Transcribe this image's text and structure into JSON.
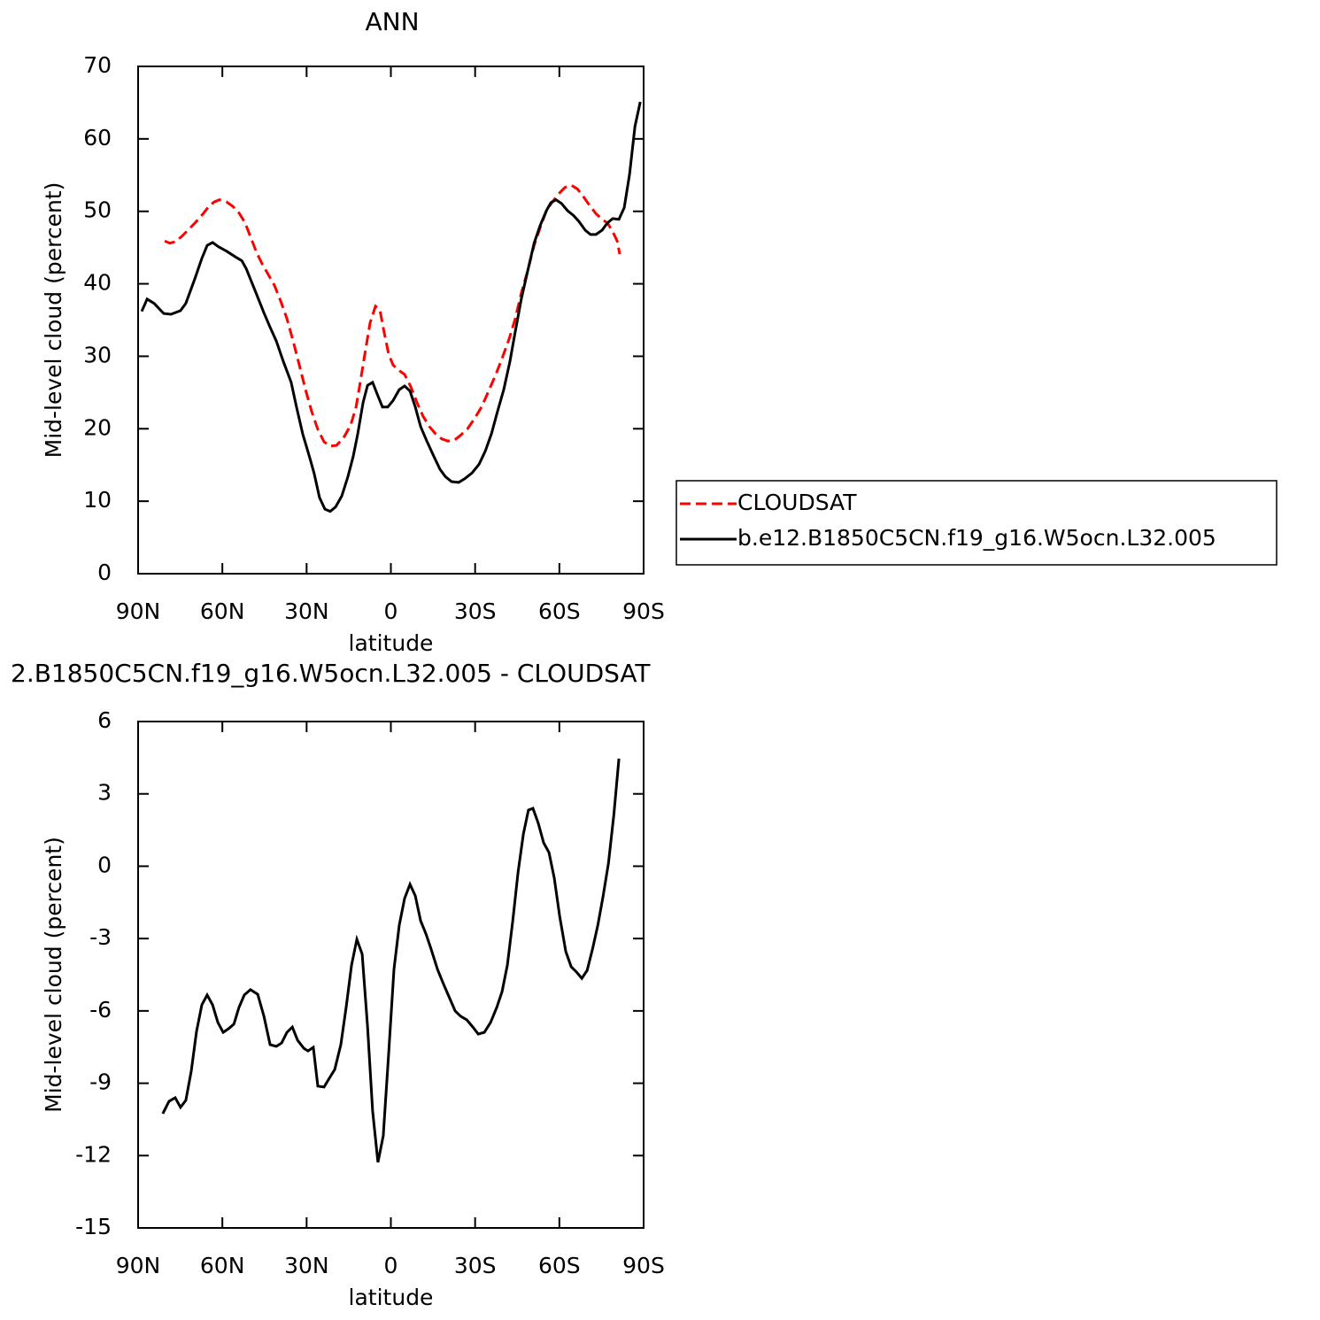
{
  "chart_data": [
    {
      "type": "line",
      "title": "ANN",
      "xlabel": "latitude",
      "ylabel": "Mid-level cloud (percent)",
      "xlim": [
        90,
        -90
      ],
      "xticks": [
        {
          "value": 90,
          "label": "90N"
        },
        {
          "value": 60,
          "label": "60N"
        },
        {
          "value": 30,
          "label": "30N"
        },
        0,
        {
          "value": -30,
          "label": "30S"
        },
        {
          "value": -60,
          "label": "60S"
        },
        {
          "value": -90,
          "label": "90S"
        }
      ],
      "ylim": [
        0,
        70
      ],
      "yticks": [
        0,
        10,
        20,
        30,
        40,
        50,
        60,
        70
      ],
      "legend": "right",
      "series": [
        {
          "name": "CLOUDSAT",
          "color": "#ff0000",
          "line_style": "dashed",
          "x": [
            80.5,
            78.7,
            76.8,
            74.6,
            72.0,
            69.5,
            67.0,
            64.8,
            62.9,
            61.0,
            58.5,
            56.3,
            54.1,
            51.9,
            50.0,
            47.8,
            45.9,
            43.7,
            41.5,
            39.2,
            37.0,
            34.8,
            32.6,
            30.4,
            28.2,
            26.0,
            23.8,
            21.6,
            19.4,
            16.9,
            14.3,
            12.4,
            10.9,
            9.0,
            7.4,
            5.5,
            3.9,
            2.4,
            0.8,
            -0.8,
            -2.7,
            -4.9,
            -7.1,
            -9.3,
            -11.5,
            -13.7,
            -15.9,
            -18.1,
            -20.3,
            -22.5,
            -24.8,
            -27.3,
            -29.8,
            -32.3,
            -34.8,
            -37.4,
            -39.6,
            -42.1,
            -44.3,
            -46.5,
            -48.8,
            -51.0,
            -53.2,
            -55.4,
            -57.5,
            -59.7,
            -62.0,
            -64.2,
            -66.4,
            -68.6,
            -70.8,
            -73.0,
            -75.2,
            -77.1,
            -79.0,
            -80.6,
            -81.5
          ],
          "values": [
            45.9,
            45.6,
            45.8,
            46.5,
            47.5,
            48.5,
            49.6,
            50.7,
            51.3,
            51.6,
            51.3,
            50.7,
            49.8,
            48.4,
            46.5,
            44.3,
            42.8,
            41.3,
            39.8,
            37.6,
            35.2,
            32.1,
            28.8,
            25.4,
            22.4,
            19.9,
            18.2,
            17.6,
            17.7,
            18.7,
            20.5,
            23.0,
            26.4,
            30.9,
            34.6,
            36.9,
            36.4,
            33.3,
            30.3,
            28.8,
            28.1,
            27.5,
            25.8,
            23.6,
            21.7,
            20.3,
            19.3,
            18.6,
            18.3,
            18.4,
            19.1,
            20.0,
            21.4,
            23.0,
            25.2,
            27.5,
            29.7,
            32.4,
            35.2,
            38.8,
            41.9,
            45.3,
            47.8,
            50.1,
            51.3,
            52.4,
            53.3,
            53.6,
            53.1,
            52.0,
            50.8,
            49.7,
            48.9,
            48.4,
            47.2,
            45.9,
            44.1
          ]
        },
        {
          "name": "b.e12.B1850C5CN.f19_g16.W5ocn.L32.005",
          "color": "#000000",
          "line_style": "solid",
          "x": [
            88.7,
            86.8,
            84.3,
            80.9,
            78.3,
            74.9,
            73.0,
            69.8,
            67.3,
            65.4,
            63.5,
            61.3,
            58.5,
            55.3,
            53.1,
            51.5,
            48.4,
            45.2,
            43.0,
            40.8,
            38.3,
            35.5,
            33.6,
            31.4,
            28.8,
            27.3,
            25.4,
            23.5,
            21.6,
            19.7,
            17.5,
            15.3,
            13.4,
            11.8,
            9.9,
            8.3,
            6.5,
            4.9,
            3.0,
            1.1,
            -0.8,
            -3.0,
            -4.9,
            -6.8,
            -8.7,
            -10.6,
            -12.8,
            -15.3,
            -17.5,
            -19.4,
            -21.6,
            -24.1,
            -26.3,
            -28.9,
            -31.4,
            -33.6,
            -35.8,
            -38.0,
            -40.2,
            -42.4,
            -44.3,
            -46.5,
            -48.8,
            -51.0,
            -53.2,
            -55.4,
            -57.0,
            -58.8,
            -60.7,
            -62.9,
            -65.1,
            -67.0,
            -69.2,
            -71.1,
            -73.0,
            -75.2,
            -77.1,
            -79.0,
            -81.2,
            -83.1,
            -85.0,
            -86.9,
            -88.8
          ],
          "values": [
            36.2,
            37.9,
            37.3,
            35.9,
            35.8,
            36.3,
            37.3,
            40.7,
            43.5,
            45.3,
            45.7,
            45.1,
            44.5,
            43.7,
            43.2,
            42.1,
            39.1,
            36.0,
            34.0,
            32.1,
            29.3,
            26.4,
            23.0,
            19.3,
            15.9,
            13.8,
            10.5,
            8.9,
            8.6,
            9.2,
            10.7,
            13.4,
            16.2,
            19.3,
            23.6,
            26.0,
            26.4,
            24.8,
            23.0,
            23.0,
            23.9,
            25.4,
            25.9,
            25.2,
            23.0,
            20.3,
            18.3,
            16.2,
            14.4,
            13.4,
            12.7,
            12.6,
            13.1,
            13.9,
            15.1,
            16.9,
            19.3,
            22.4,
            25.4,
            29.3,
            33.4,
            38.0,
            41.9,
            45.6,
            48.1,
            50.1,
            51.2,
            51.6,
            51.1,
            50.1,
            49.4,
            48.6,
            47.4,
            46.8,
            46.8,
            47.4,
            48.4,
            49.0,
            48.9,
            50.5,
            55.1,
            61.7,
            65.1
          ]
        }
      ]
    },
    {
      "type": "line",
      "title": "2.B1850C5CN.f19_g16.W5ocn.L32.005 - CLOUDSAT",
      "xlabel": "latitude",
      "ylabel": "Mid-level cloud (percent)",
      "xlim": [
        90,
        -90
      ],
      "xticks": [
        {
          "value": 90,
          "label": "90N"
        },
        {
          "value": 60,
          "label": "60N"
        },
        {
          "value": 30,
          "label": "30N"
        },
        0,
        {
          "value": -30,
          "label": "30S"
        },
        {
          "value": -60,
          "label": "60S"
        },
        {
          "value": -90,
          "label": "90S"
        }
      ],
      "ylim": [
        -15,
        6
      ],
      "yticks": [
        -15,
        -12,
        -9,
        -6,
        -3,
        0,
        3,
        6
      ],
      "series": [
        {
          "color": "#000000",
          "line_style": "solid",
          "x": [
            81.2,
            79.0,
            76.8,
            74.9,
            73.0,
            71.1,
            69.2,
            67.3,
            65.4,
            63.5,
            61.6,
            59.7,
            57.8,
            55.9,
            54.1,
            52.2,
            50.0,
            47.4,
            45.2,
            43.0,
            40.8,
            38.9,
            37.0,
            35.1,
            33.2,
            31.0,
            29.5,
            27.6,
            26.0,
            23.8,
            21.9,
            20.0,
            17.8,
            15.9,
            14.0,
            12.1,
            10.2,
            8.3,
            6.5,
            4.6,
            2.7,
            0.8,
            -1.1,
            -3.0,
            -4.9,
            -6.8,
            -8.7,
            -10.6,
            -12.5,
            -14.3,
            -16.6,
            -18.8,
            -21.0,
            -22.9,
            -24.8,
            -27.0,
            -29.2,
            -31.1,
            -33.3,
            -35.5,
            -37.7,
            -39.6,
            -41.5,
            -43.4,
            -45.3,
            -47.2,
            -49.0,
            -50.6,
            -52.5,
            -54.4,
            -56.3,
            -58.2,
            -60.1,
            -62.3,
            -64.2,
            -66.1,
            -68.0,
            -69.9,
            -71.8,
            -73.7,
            -75.6,
            -77.5,
            -79.4,
            -81.2
          ],
          "values": [
            -10.26,
            -9.75,
            -9.6,
            -10.0,
            -9.71,
            -8.5,
            -6.85,
            -5.75,
            -5.34,
            -5.75,
            -6.48,
            -6.89,
            -6.74,
            -6.55,
            -5.86,
            -5.34,
            -5.12,
            -5.31,
            -6.22,
            -7.4,
            -7.47,
            -7.33,
            -6.89,
            -6.67,
            -7.22,
            -7.55,
            -7.66,
            -7.51,
            -9.12,
            -9.16,
            -8.79,
            -8.43,
            -7.4,
            -5.82,
            -4.1,
            -3.03,
            -3.65,
            -6.67,
            -10.15,
            -12.28,
            -11.18,
            -7.77,
            -4.28,
            -2.44,
            -1.34,
            -0.75,
            -1.23,
            -2.26,
            -2.81,
            -3.43,
            -4.28,
            -4.9,
            -5.49,
            -6.0,
            -6.22,
            -6.37,
            -6.67,
            -6.96,
            -6.89,
            -6.48,
            -5.86,
            -5.2,
            -4.1,
            -2.26,
            -0.24,
            1.34,
            2.33,
            2.4,
            1.78,
            0.97,
            0.57,
            -0.5,
            -2.08,
            -3.54,
            -4.17,
            -4.39,
            -4.65,
            -4.32,
            -3.43,
            -2.44,
            -1.23,
            0.13,
            2.15,
            4.46
          ]
        }
      ]
    }
  ]
}
